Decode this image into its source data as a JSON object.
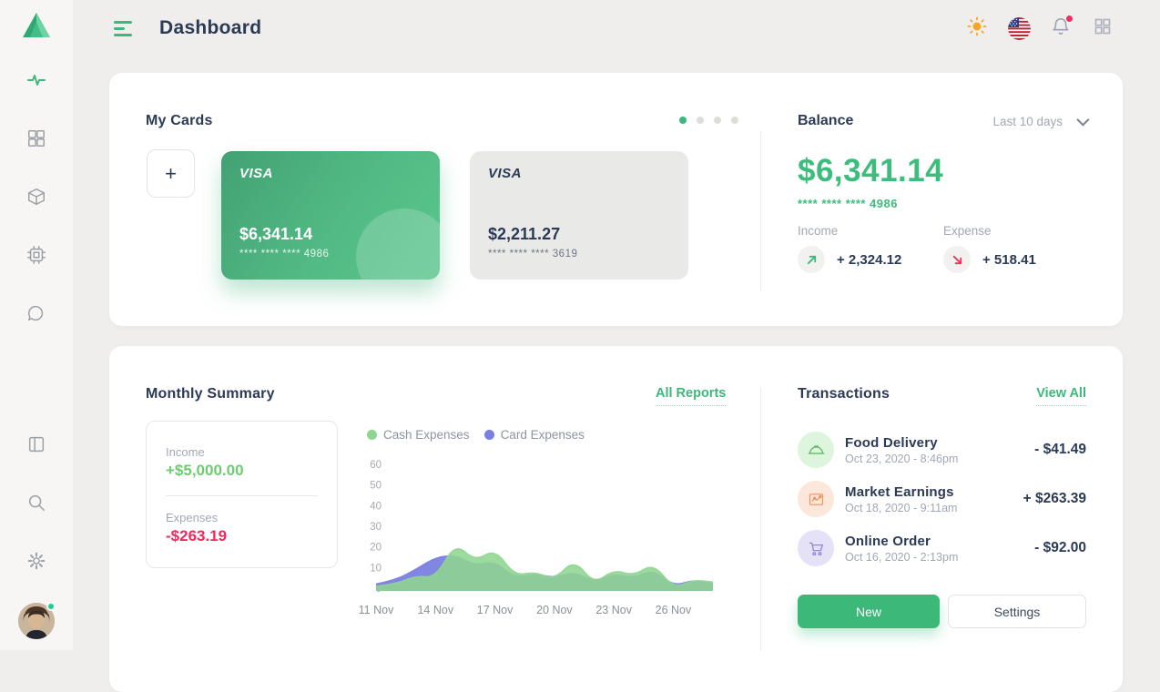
{
  "colors": {
    "accent_green": "#3cb87c",
    "balance_green": "#3dbd7d",
    "navy": "#2b3a55",
    "red": "#f1295c",
    "cash_series": "#8fd591",
    "card_series": "#7a7fe1"
  },
  "header": {
    "title": "Dashboard",
    "icons": [
      "menu-icon",
      "sun-icon",
      "us-flag-icon",
      "bell-icon",
      "apps-grid-icon"
    ],
    "notification_dot": true
  },
  "sidebar": {
    "logo_icon": "triangle-logo",
    "items": [
      {
        "icon": "activity-icon",
        "active": true
      },
      {
        "icon": "grid-icon",
        "active": false
      },
      {
        "icon": "package-icon",
        "active": false
      },
      {
        "icon": "cpu-icon",
        "active": false
      },
      {
        "icon": "chat-icon",
        "active": false
      },
      {
        "icon": "layout-icon",
        "active": false
      },
      {
        "icon": "search-icon",
        "active": false
      },
      {
        "icon": "gear-icon",
        "active": false
      }
    ],
    "avatar_online": true
  },
  "my_cards": {
    "title": "My Cards",
    "add_label": "+",
    "active_dot_index": 0,
    "dot_count": 4,
    "cards": [
      {
        "brand": "VISA",
        "balance": "$6,341.14",
        "number": "**** **** **** 4986",
        "style": "green"
      },
      {
        "brand": "VISA",
        "balance": "$2,211.27",
        "number": "**** **** **** 3619",
        "style": "gray"
      }
    ]
  },
  "balance": {
    "title": "Balance",
    "period": "Last 10 days",
    "amount": "$6,341.14",
    "card_number": "**** **** **** 4986",
    "income_label": "Income",
    "income_value": "+ 2,324.12",
    "expense_label": "Expense",
    "expense_value": "+ 518.41"
  },
  "monthly_summary": {
    "title": "Monthly Summary",
    "link": "All Reports",
    "income_label": "Income",
    "income_value": "+$5,000.00",
    "expenses_label": "Expenses",
    "expenses_value": "-$263.19"
  },
  "chart_data": {
    "type": "area",
    "x": [
      "11 Nov",
      "12 Nov",
      "13 Nov",
      "14 Nov",
      "15 Nov",
      "16 Nov",
      "17 Nov",
      "18 Nov",
      "19 Nov",
      "20 Nov",
      "21 Nov",
      "22 Nov",
      "23 Nov",
      "24 Nov",
      "25 Nov",
      "26 Nov",
      "27 Nov",
      "28 Nov"
    ],
    "series": [
      {
        "name": "Card Expenses",
        "color": "#7a7fe1",
        "values": [
          2,
          4,
          9,
          15,
          16,
          11,
          13,
          5,
          7,
          5,
          8,
          3,
          7,
          5,
          9,
          1,
          4,
          2
        ]
      },
      {
        "name": "Cash Expenses",
        "color": "#8fd591",
        "values": [
          1,
          2,
          6,
          5,
          22,
          13,
          19,
          6,
          8,
          4,
          14,
          2,
          9,
          6,
          12,
          0,
          4,
          3
        ]
      }
    ],
    "legend_order": [
      "Cash Expenses",
      "Card Expenses"
    ],
    "title": "",
    "xlabel": "",
    "ylabel": "",
    "ylim": [
      0,
      60
    ],
    "yticks": [
      60,
      50,
      40,
      30,
      20,
      10,
      0
    ],
    "x_tick_labels": [
      "11 Nov",
      "14 Nov",
      "17 Nov",
      "20 Nov",
      "23 Nov",
      "26 Nov"
    ],
    "x_tick_indices": [
      0,
      3,
      6,
      9,
      12,
      15
    ],
    "grid": false,
    "legend_position": "top"
  },
  "transactions": {
    "title": "Transactions",
    "link": "View All",
    "items": [
      {
        "name": "Food Delivery",
        "date": "Oct 23, 2020 - 8:46pm",
        "amount": "- $41.49",
        "icon": "cloche-icon",
        "color": "green"
      },
      {
        "name": "Market Earnings",
        "date": "Oct 18, 2020 - 9:11am",
        "amount": "+ $263.39",
        "icon": "chart-icon",
        "color": "orange"
      },
      {
        "name": "Online Order",
        "date": "Oct 16, 2020 - 2:13pm",
        "amount": "- $92.00",
        "icon": "cart-icon",
        "color": "purple"
      }
    ]
  },
  "actions": {
    "new_label": "New",
    "settings_label": "Settings"
  }
}
